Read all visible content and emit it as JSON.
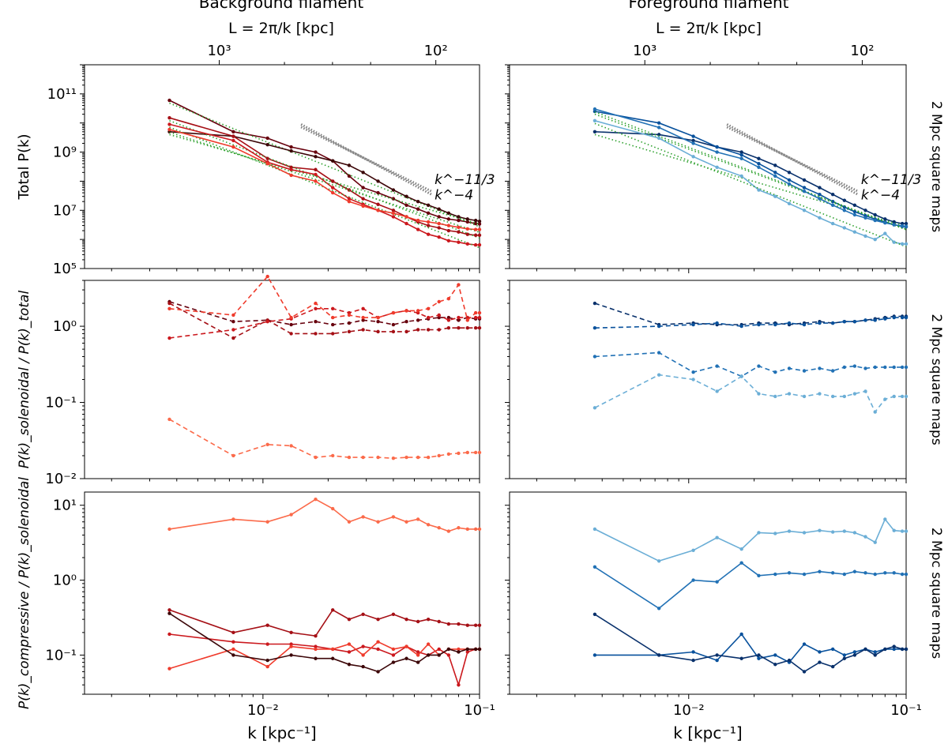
{
  "figure": {
    "col_titles": [
      "Background filament",
      "Foreground filament"
    ],
    "row_label": "2 Mpc square maps",
    "top_axis_label": "L = 2π/k [kpc]",
    "top_ticks": [
      {
        "value": 1000,
        "label": "10³"
      },
      {
        "value": 100,
        "label": "10²"
      }
    ],
    "xlabel": "k [kpc⁻¹]",
    "ylabels": [
      "Total P(k)",
      "P(k)_solenoidal / P(k)_total",
      "P(k)_compressive / P(k)_solenoidal"
    ],
    "slope_labels": [
      "k^−11/3",
      "k^−4"
    ],
    "x_range": [
      0.0015,
      0.1
    ],
    "x_ticks": [
      {
        "value": 0.01,
        "label": "10⁻²"
      },
      {
        "value": 0.1,
        "label": "10⁻¹"
      }
    ]
  },
  "chart_data": [
    {
      "type": "line",
      "panel": "background-total",
      "yscale": "log",
      "xscale": "log",
      "ylim": [
        100000,
        1000000000000.0
      ],
      "yticks": [
        {
          "value": 100000.0,
          "label": "10⁵"
        },
        {
          "value": 10000000.0,
          "label": "10⁷"
        },
        {
          "value": 1000000000.0,
          "label": "10⁹"
        },
        {
          "value": 100000000000.0,
          "label": "10¹¹"
        }
      ],
      "x": [
        0.0037,
        0.0073,
        0.0105,
        0.0135,
        0.0175,
        0.021,
        0.025,
        0.029,
        0.034,
        0.04,
        0.046,
        0.052,
        0.058,
        0.065,
        0.072,
        0.08,
        0.088,
        0.096,
        0.1
      ],
      "series": [
        {
          "color": "#67000d",
          "dash": false,
          "values": [
            60000000000.0,
            5000000000.0,
            3000000000.0,
            1500000000.0,
            1000000000.0,
            500000000.0,
            150000000.0,
            60000000.0,
            40000000.0,
            25000000.0,
            15000000.0,
            11000000.0,
            8000000.0,
            6000000.0,
            5000000.0,
            4500000.0,
            4000000.0,
            3500000.0,
            3400000.0
          ]
        },
        {
          "color": "#3c0608",
          "dash": false,
          "values": [
            5000000000.0,
            3500000000.0,
            1800000000.0,
            1100000000.0,
            700000000.0,
            500000000.0,
            350000000.0,
            200000000.0,
            100000000.0,
            50000000.0,
            30000000.0,
            20000000.0,
            15000000.0,
            11000000.0,
            8000000.0,
            6000000.0,
            5000000.0,
            4500000.0,
            4200000.0
          ]
        },
        {
          "color": "#a50f15",
          "dash": false,
          "values": [
            15000000000.0,
            3500000000.0,
            600000000.0,
            300000000.0,
            250000000.0,
            100000000.0,
            50000000.0,
            25000000.0,
            16000000.0,
            10000000.0,
            6000000.0,
            4000000.0,
            3000000.0,
            2500000.0,
            2000000.0,
            1800000.0,
            1500000.0,
            1400000.0,
            1400000.0
          ]
        },
        {
          "color": "#cb181d",
          "dash": false,
          "values": [
            9000000000.0,
            2500000000.0,
            450000000.0,
            250000000.0,
            170000000.0,
            60000000.0,
            25000000.0,
            16000000.0,
            10000000.0,
            6000000.0,
            3500000.0,
            2200000.0,
            1500000.0,
            1200000.0,
            900000.0,
            800000.0,
            700000.0,
            650000.0,
            650000.0
          ]
        },
        {
          "color": "#ef3b2c",
          "dash": false,
          "values": [
            6000000000.0,
            1500000000.0,
            400000000.0,
            160000000.0,
            100000000.0,
            40000000.0,
            20000000.0,
            14000000.0,
            10000000.0,
            8000000.0,
            6000000.0,
            4500000.0,
            4000000.0,
            3500000.0,
            3000000.0,
            2600000.0,
            2300000.0,
            2200000.0,
            2200000.0
          ]
        }
      ]
    },
    {
      "type": "line",
      "panel": "foreground-total",
      "yscale": "log",
      "xscale": "log",
      "ylim": [
        100000,
        1000000000000.0
      ],
      "x": [
        0.0037,
        0.0073,
        0.0105,
        0.0135,
        0.0175,
        0.021,
        0.025,
        0.029,
        0.034,
        0.04,
        0.046,
        0.052,
        0.058,
        0.065,
        0.072,
        0.08,
        0.088,
        0.096,
        0.1
      ],
      "series": [
        {
          "color": "#08306b",
          "dash": false,
          "values": [
            5000000000.0,
            4000000000.0,
            2500000000.0,
            1500000000.0,
            1000000000.0,
            600000000.0,
            350000000.0,
            200000000.0,
            110000000.0,
            60000000.0,
            35000000.0,
            22000000.0,
            15000000.0,
            10000000.0,
            7000000.0,
            5000000.0,
            4000000.0,
            3500000.0,
            3500000.0
          ]
        },
        {
          "color": "#08519c",
          "dash": false,
          "values": [
            25000000000.0,
            10000000000.0,
            3500000000.0,
            1500000000.0,
            800000000.0,
            400000000.0,
            200000000.0,
            110000000.0,
            60000000.0,
            35000000.0,
            20000000.0,
            13000000.0,
            9000000.0,
            6500000.0,
            5000000.0,
            4000000.0,
            3200000.0,
            2800000.0,
            2700000.0
          ]
        },
        {
          "color": "#2171b5",
          "dash": false,
          "values": [
            30000000000.0,
            7000000000.0,
            2000000000.0,
            1000000000.0,
            600000000.0,
            300000000.0,
            150000000.0,
            80000000.0,
            45000000.0,
            25000000.0,
            15000000.0,
            10000000.0,
            7000000.0,
            5500000.0,
            4500000.0,
            3700000.0,
            3200000.0,
            2900000.0,
            2800000.0
          ]
        },
        {
          "color": "#6baed6",
          "dash": false,
          "values": [
            12000000000.0,
            3000000000.0,
            700000000.0,
            300000000.0,
            150000000.0,
            50000000.0,
            30000000.0,
            17000000.0,
            10000000.0,
            5500000.0,
            3500000.0,
            2500000.0,
            1800000.0,
            1300000.0,
            1000000.0,
            1600000.0,
            800000.0,
            700000.0,
            700000.0
          ]
        }
      ]
    },
    {
      "type": "line",
      "panel": "background-solenoidal-ratio",
      "yscale": "log",
      "xscale": "log",
      "ylim": [
        0.01,
        4
      ],
      "yticks": [
        {
          "value": 0.01,
          "label": "10⁻²"
        },
        {
          "value": 0.1,
          "label": "10⁻¹"
        },
        {
          "value": 1,
          "label": "10⁰"
        }
      ],
      "x": [
        0.0037,
        0.0073,
        0.0105,
        0.0135,
        0.0175,
        0.021,
        0.025,
        0.029,
        0.034,
        0.04,
        0.046,
        0.052,
        0.058,
        0.065,
        0.072,
        0.08,
        0.088,
        0.096,
        0.1
      ],
      "series": [
        {
          "color": "#67000d",
          "dash": true,
          "values": [
            2.1,
            1.15,
            1.2,
            1.05,
            1.15,
            1.05,
            1.1,
            1.2,
            1.15,
            1.05,
            1.15,
            1.2,
            1.25,
            1.3,
            1.3,
            1.2,
            1.3,
            1.25,
            1.25
          ]
        },
        {
          "color": "#a50f15",
          "dash": true,
          "values": [
            2,
            0.7,
            1.2,
            0.8,
            0.8,
            0.8,
            0.85,
            0.9,
            0.85,
            0.85,
            0.85,
            0.9,
            0.9,
            0.9,
            0.95,
            0.95,
            0.95,
            0.95,
            0.95
          ]
        },
        {
          "color": "#cb181d",
          "dash": true,
          "values": [
            0.7,
            0.9,
            1.15,
            1.25,
            1.7,
            1.7,
            1.5,
            1.7,
            1.3,
            1.5,
            1.6,
            1.5,
            1.3,
            1.4,
            1.2,
            1.3,
            1.3,
            1.3,
            1.3
          ]
        },
        {
          "color": "#ef3b2c",
          "dash": true,
          "values": [
            1.7,
            1.4,
            4.5,
            1.3,
            2.0,
            1.3,
            1.4,
            1.3,
            1.3,
            1.5,
            1.6,
            1.6,
            1.7,
            2.1,
            2.3,
            3.5,
            1.2,
            1.5,
            1.5
          ]
        },
        {
          "color": "#fb6a4a",
          "dash": true,
          "values": [
            0.06,
            0.02,
            0.028,
            0.027,
            0.019,
            0.02,
            0.019,
            0.019,
            0.019,
            0.0185,
            0.019,
            0.019,
            0.019,
            0.02,
            0.021,
            0.0215,
            0.022,
            0.022,
            0.022
          ]
        }
      ]
    },
    {
      "type": "line",
      "panel": "foreground-solenoidal-ratio",
      "yscale": "log",
      "xscale": "log",
      "ylim": [
        0.01,
        4
      ],
      "x": [
        0.0037,
        0.0073,
        0.0105,
        0.0135,
        0.0175,
        0.021,
        0.025,
        0.029,
        0.034,
        0.04,
        0.046,
        0.052,
        0.058,
        0.065,
        0.072,
        0.08,
        0.088,
        0.096,
        0.1
      ],
      "series": [
        {
          "color": "#08306b",
          "dash": true,
          "values": [
            2.0,
            1.05,
            1.1,
            1.05,
            1.05,
            1.1,
            1.1,
            1.05,
            1.1,
            1.15,
            1.1,
            1.15,
            1.15,
            1.2,
            1.25,
            1.3,
            1.35,
            1.35,
            1.35
          ]
        },
        {
          "color": "#08519c",
          "dash": true,
          "values": [
            0.95,
            1.0,
            1.05,
            1.1,
            1.0,
            1.05,
            1.05,
            1.1,
            1.05,
            1.1,
            1.1,
            1.15,
            1.15,
            1.2,
            1.2,
            1.25,
            1.3,
            1.3,
            1.3
          ]
        },
        {
          "color": "#2171b5",
          "dash": true,
          "values": [
            0.4,
            0.45,
            0.25,
            0.3,
            0.22,
            0.3,
            0.25,
            0.28,
            0.26,
            0.28,
            0.26,
            0.29,
            0.3,
            0.28,
            0.29,
            0.29,
            0.29,
            0.29,
            0.29
          ]
        },
        {
          "color": "#6baed6",
          "dash": true,
          "values": [
            0.085,
            0.23,
            0.2,
            0.14,
            0.22,
            0.13,
            0.12,
            0.13,
            0.12,
            0.13,
            0.12,
            0.12,
            0.13,
            0.14,
            0.075,
            0.11,
            0.12,
            0.12,
            0.12
          ]
        }
      ]
    },
    {
      "type": "line",
      "panel": "background-compressive-ratio",
      "yscale": "log",
      "xscale": "log",
      "ylim": [
        0.03,
        15
      ],
      "yticks": [
        {
          "value": 0.1,
          "label": "10⁻¹"
        },
        {
          "value": 1,
          "label": "10⁰"
        },
        {
          "value": 10,
          "label": "10¹"
        }
      ],
      "x": [
        0.0037,
        0.0073,
        0.0105,
        0.0135,
        0.0175,
        0.021,
        0.025,
        0.029,
        0.034,
        0.04,
        0.046,
        0.052,
        0.058,
        0.065,
        0.072,
        0.08,
        0.088,
        0.096,
        0.1
      ],
      "series": [
        {
          "color": "#fb6a4a",
          "dash": false,
          "values": [
            4.8,
            6.5,
            6,
            7.5,
            12,
            9,
            6,
            7,
            6,
            7,
            6,
            6.5,
            5.5,
            5,
            4.5,
            5,
            4.8,
            4.8,
            4.8
          ]
        },
        {
          "color": "#a50f15",
          "dash": false,
          "values": [
            0.4,
            0.2,
            0.25,
            0.2,
            0.18,
            0.4,
            0.3,
            0.35,
            0.3,
            0.35,
            0.3,
            0.28,
            0.3,
            0.28,
            0.26,
            0.26,
            0.25,
            0.25,
            0.25
          ]
        },
        {
          "color": "#cb181d",
          "dash": false,
          "values": [
            0.19,
            0.15,
            0.14,
            0.14,
            0.13,
            0.12,
            0.11,
            0.13,
            0.12,
            0.1,
            0.13,
            0.11,
            0.1,
            0.12,
            0.1,
            0.04,
            0.11,
            0.12,
            0.12
          ]
        },
        {
          "color": "#ef3b2c",
          "dash": false,
          "values": [
            0.066,
            0.12,
            0.07,
            0.13,
            0.12,
            0.12,
            0.14,
            0.1,
            0.15,
            0.12,
            0.13,
            0.1,
            0.14,
            0.1,
            0.12,
            0.12,
            0.12,
            0.12,
            0.12
          ]
        },
        {
          "color": "#3c0608",
          "dash": false,
          "values": [
            0.36,
            0.1,
            0.085,
            0.1,
            0.09,
            0.09,
            0.075,
            0.07,
            0.06,
            0.08,
            0.09,
            0.08,
            0.1,
            0.1,
            0.12,
            0.11,
            0.12,
            0.12,
            0.12
          ]
        }
      ]
    },
    {
      "type": "line",
      "panel": "foreground-compressive-ratio",
      "yscale": "log",
      "xscale": "log",
      "ylim": [
        0.03,
        15
      ],
      "x": [
        0.0037,
        0.0073,
        0.0105,
        0.0135,
        0.0175,
        0.021,
        0.025,
        0.029,
        0.034,
        0.04,
        0.046,
        0.052,
        0.058,
        0.065,
        0.072,
        0.08,
        0.088,
        0.096,
        0.1
      ],
      "series": [
        {
          "color": "#6baed6",
          "dash": false,
          "values": [
            4.8,
            1.8,
            2.5,
            3.7,
            2.6,
            4.3,
            4.2,
            4.5,
            4.3,
            4.6,
            4.4,
            4.5,
            4.3,
            3.8,
            3.2,
            6.5,
            4.6,
            4.5,
            4.5
          ]
        },
        {
          "color": "#2171b5",
          "dash": false,
          "values": [
            1.5,
            0.42,
            1.0,
            0.95,
            1.7,
            1.15,
            1.2,
            1.25,
            1.2,
            1.3,
            1.25,
            1.2,
            1.3,
            1.25,
            1.2,
            1.25,
            1.25,
            1.2,
            1.2
          ]
        },
        {
          "color": "#08519c",
          "dash": false,
          "values": [
            0.1,
            0.1,
            0.11,
            0.085,
            0.19,
            0.09,
            0.1,
            0.08,
            0.14,
            0.11,
            0.12,
            0.1,
            0.11,
            0.12,
            0.11,
            0.12,
            0.12,
            0.12,
            0.12
          ]
        },
        {
          "color": "#08306b",
          "dash": false,
          "values": [
            0.35,
            0.1,
            0.085,
            0.1,
            0.09,
            0.1,
            0.075,
            0.085,
            0.06,
            0.08,
            0.07,
            0.09,
            0.1,
            0.12,
            0.1,
            0.12,
            0.13,
            0.12,
            0.12
          ]
        }
      ]
    }
  ]
}
